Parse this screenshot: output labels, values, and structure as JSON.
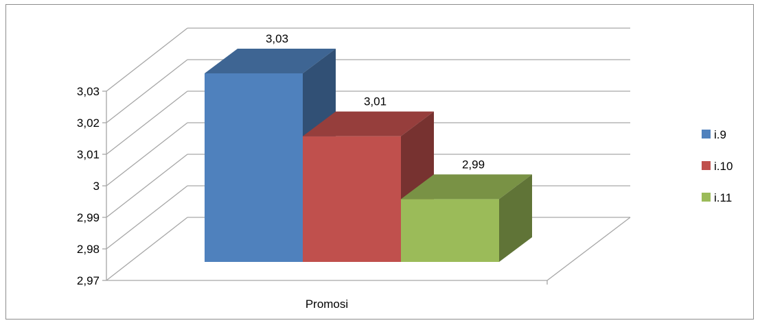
{
  "chart_data": {
    "type": "bar",
    "categories": [
      "Promosi"
    ],
    "series": [
      {
        "name": "i.9",
        "values": [
          3.03
        ],
        "label": "3,03",
        "color": "#4F81BD"
      },
      {
        "name": "i.10",
        "values": [
          3.01
        ],
        "label": "3,01",
        "color": "#C0504D"
      },
      {
        "name": "i.11",
        "values": [
          2.99
        ],
        "label": "2,99",
        "color": "#9BBB59"
      }
    ],
    "ylim": [
      2.97,
      3.03
    ],
    "yticks": [
      "2,97",
      "2,98",
      "2,99",
      "3",
      "3,01",
      "3,02",
      "3,03"
    ],
    "grid": true,
    "legend_position": "right",
    "style": "3d-clustered-column"
  }
}
